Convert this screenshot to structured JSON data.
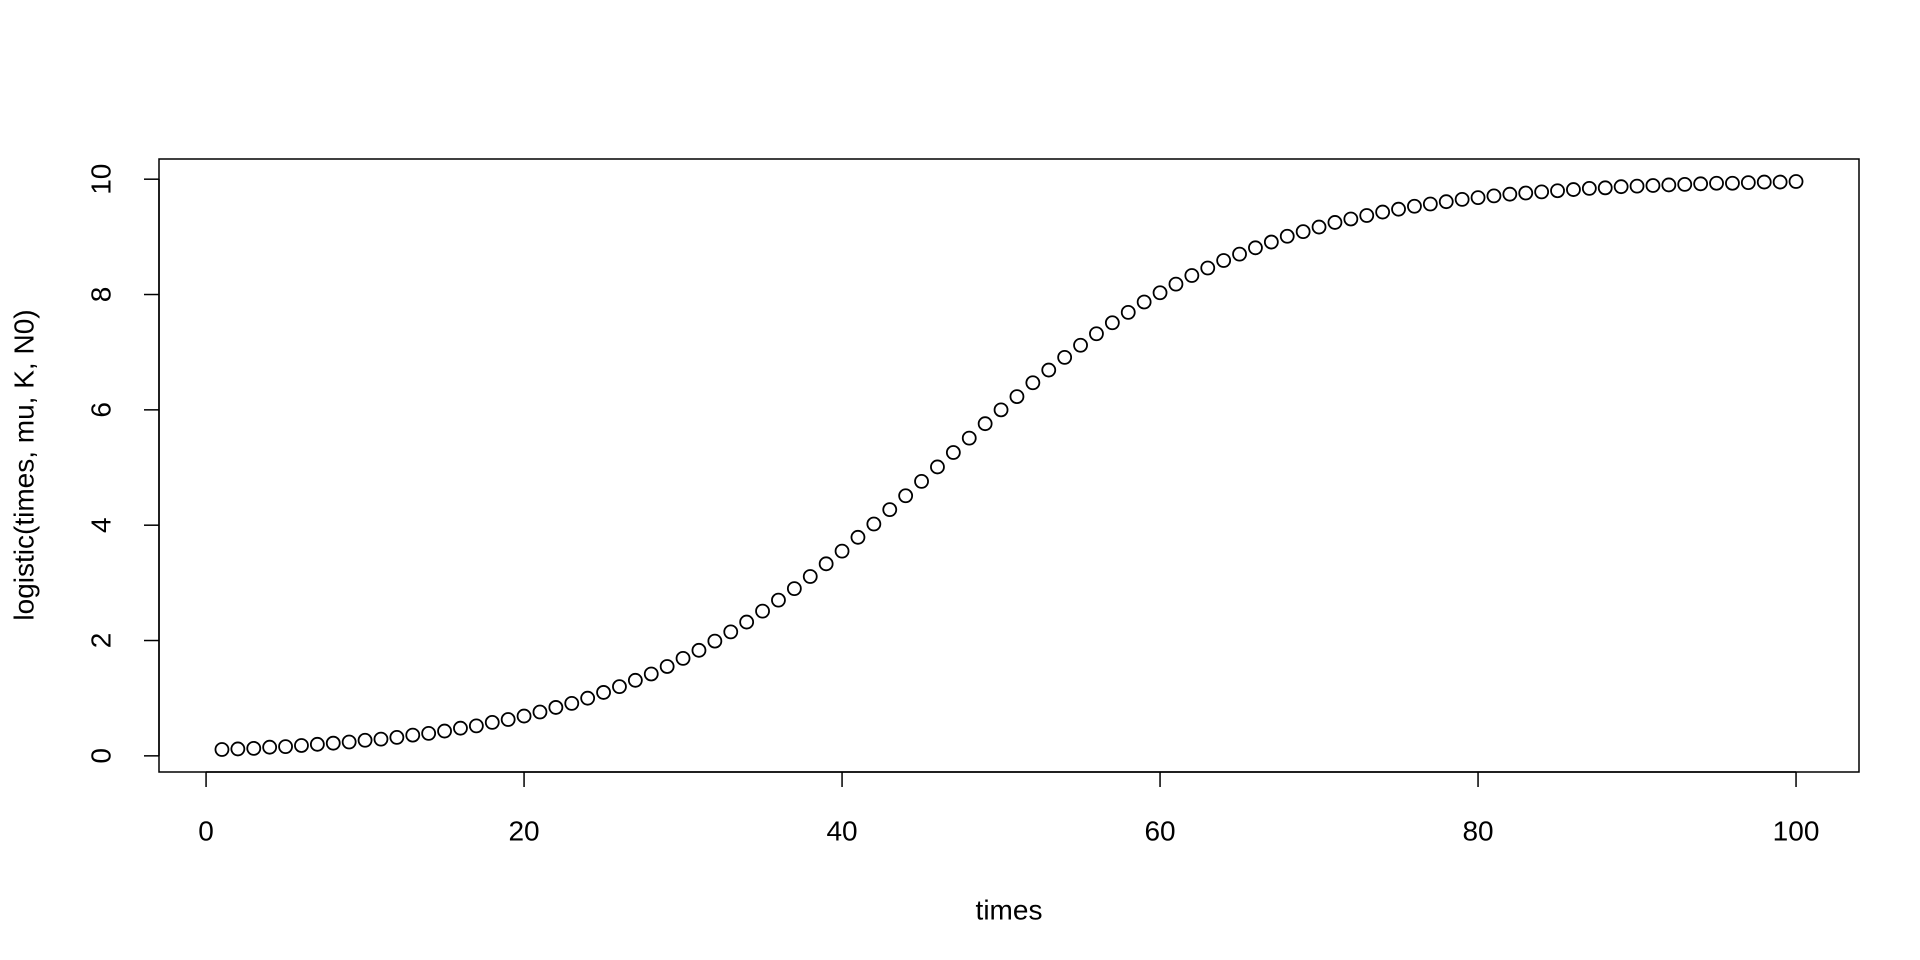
{
  "chart_data": {
    "type": "scatter",
    "xlabel": "times",
    "ylabel": "logistic(times, mu, K, N0)",
    "xlim": [
      -2.96,
      103.96
    ],
    "ylim": [
      -0.28,
      10.35
    ],
    "xticks": [
      0,
      20,
      40,
      60,
      80,
      100
    ],
    "yticks": [
      0,
      2,
      4,
      6,
      8,
      10
    ],
    "grid": false,
    "marker": "open-circle",
    "color": "#000000",
    "x": [
      1,
      2,
      3,
      4,
      5,
      6,
      7,
      8,
      9,
      10,
      11,
      12,
      13,
      14,
      15,
      16,
      17,
      18,
      19,
      20,
      21,
      22,
      23,
      24,
      25,
      26,
      27,
      28,
      29,
      30,
      31,
      32,
      33,
      34,
      35,
      36,
      37,
      38,
      39,
      40,
      41,
      42,
      43,
      44,
      45,
      46,
      47,
      48,
      49,
      50,
      51,
      52,
      53,
      54,
      55,
      56,
      57,
      58,
      59,
      60,
      61,
      62,
      63,
      64,
      65,
      66,
      67,
      68,
      69,
      70,
      71,
      72,
      73,
      74,
      75,
      76,
      77,
      78,
      79,
      80,
      81,
      82,
      83,
      84,
      85,
      86,
      87,
      88,
      89,
      90,
      91,
      92,
      93,
      94,
      95,
      96,
      97,
      98,
      99,
      100
    ],
    "values": [
      0.11,
      0.12,
      0.13,
      0.15,
      0.16,
      0.18,
      0.2,
      0.22,
      0.24,
      0.27,
      0.29,
      0.32,
      0.36,
      0.39,
      0.43,
      0.48,
      0.52,
      0.58,
      0.63,
      0.69,
      0.76,
      0.84,
      0.91,
      1.0,
      1.1,
      1.2,
      1.31,
      1.42,
      1.55,
      1.69,
      1.83,
      1.99,
      2.15,
      2.32,
      2.51,
      2.7,
      2.9,
      3.11,
      3.33,
      3.55,
      3.79,
      4.02,
      4.27,
      4.51,
      4.76,
      5.01,
      5.26,
      5.51,
      5.76,
      6.0,
      6.23,
      6.47,
      6.69,
      6.91,
      7.12,
      7.32,
      7.51,
      7.69,
      7.87,
      8.03,
      8.18,
      8.33,
      8.46,
      8.59,
      8.7,
      8.81,
      8.91,
      9.01,
      9.09,
      9.17,
      9.25,
      9.31,
      9.37,
      9.43,
      9.48,
      9.53,
      9.57,
      9.61,
      9.65,
      9.68,
      9.71,
      9.74,
      9.76,
      9.78,
      9.8,
      9.82,
      9.84,
      9.85,
      9.87,
      9.88,
      9.89,
      9.9,
      9.91,
      9.92,
      9.93,
      9.93,
      9.94,
      9.95,
      9.95,
      9.96
    ]
  }
}
